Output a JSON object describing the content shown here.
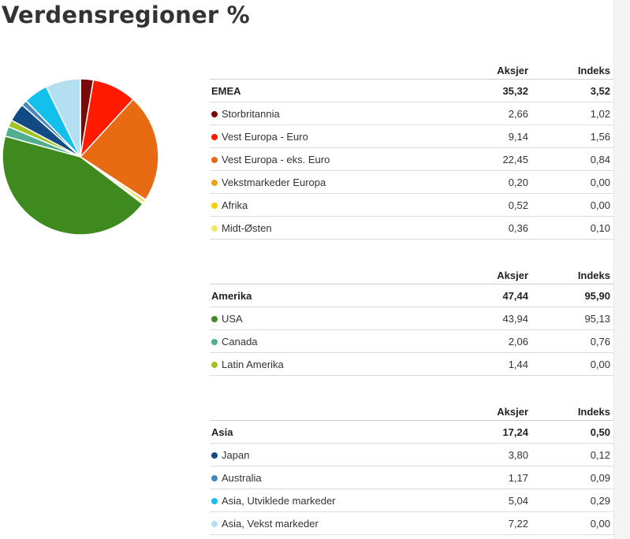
{
  "page_title": "Verdensregioner %",
  "column_headers": {
    "stocks": "Aksjer",
    "index": "Indeks"
  },
  "regions": [
    {
      "name": "EMEA",
      "stocks": "35,32",
      "index": "3,52",
      "items": [
        {
          "label": "Storbritannia",
          "stocks": "2,66",
          "index": "1,02",
          "color": "#7a0a0a"
        },
        {
          "label": "Vest Europa - Euro",
          "stocks": "9,14",
          "index": "1,56",
          "color": "#ff1a00"
        },
        {
          "label": "Vest Europa - eks. Euro",
          "stocks": "22,45",
          "index": "0,84",
          "color": "#e86a12"
        },
        {
          "label": "Vekstmarkeder Europa",
          "stocks": "0,20",
          "index": "0,00",
          "color": "#e8a317"
        },
        {
          "label": "Afrika",
          "stocks": "0,52",
          "index": "0,00",
          "color": "#f5cf00"
        },
        {
          "label": "Midt-Østen",
          "stocks": "0,36",
          "index": "0,10",
          "color": "#f2e86a"
        }
      ]
    },
    {
      "name": "Amerika",
      "stocks": "47,44",
      "index": "95,90",
      "items": [
        {
          "label": "USA",
          "stocks": "43,94",
          "index": "95,13",
          "color": "#3e8a1f"
        },
        {
          "label": "Canada",
          "stocks": "2,06",
          "index": "0,76",
          "color": "#4fae8f"
        },
        {
          "label": "Latin Amerika",
          "stocks": "1,44",
          "index": "0,00",
          "color": "#a2c423"
        }
      ]
    },
    {
      "name": "Asia",
      "stocks": "17,24",
      "index": "0,50",
      "items": [
        {
          "label": "Japan",
          "stocks": "3,80",
          "index": "0,12",
          "color": "#124a84"
        },
        {
          "label": "Australia",
          "stocks": "1,17",
          "index": "0,09",
          "color": "#4a86b8"
        },
        {
          "label": "Asia, Utviklede markeder",
          "stocks": "5,04",
          "index": "0,29",
          "color": "#12c0ec"
        },
        {
          "label": "Asia, Vekst markeder",
          "stocks": "7,22",
          "index": "0,00",
          "color": "#b4dff0"
        }
      ]
    }
  ],
  "chart_data": {
    "type": "pie",
    "slices": [
      {
        "label": "Storbritannia",
        "value": 2.66,
        "color": "#7a0a0a"
      },
      {
        "label": "Vest Europa - Euro",
        "value": 9.14,
        "color": "#ff1a00"
      },
      {
        "label": "Vest Europa - eks. Euro",
        "value": 22.45,
        "color": "#e86a12"
      },
      {
        "label": "Vekstmarkeder Europa",
        "value": 0.2,
        "color": "#e8a317"
      },
      {
        "label": "Afrika",
        "value": 0.52,
        "color": "#f5cf00"
      },
      {
        "label": "Midt-Østen",
        "value": 0.36,
        "color": "#f2e86a"
      },
      {
        "label": "USA",
        "value": 43.94,
        "color": "#3e8a1f"
      },
      {
        "label": "Canada",
        "value": 2.06,
        "color": "#4fae8f"
      },
      {
        "label": "Latin Amerika",
        "value": 1.44,
        "color": "#a2c423"
      },
      {
        "label": "Japan",
        "value": 3.8,
        "color": "#124a84"
      },
      {
        "label": "Australia",
        "value": 1.17,
        "color": "#4a86b8"
      },
      {
        "label": "Asia, Utviklede markeder",
        "value": 5.04,
        "color": "#12c0ec"
      },
      {
        "label": "Asia, Vekst markeder",
        "value": 7.22,
        "color": "#b4dff0"
      }
    ]
  }
}
